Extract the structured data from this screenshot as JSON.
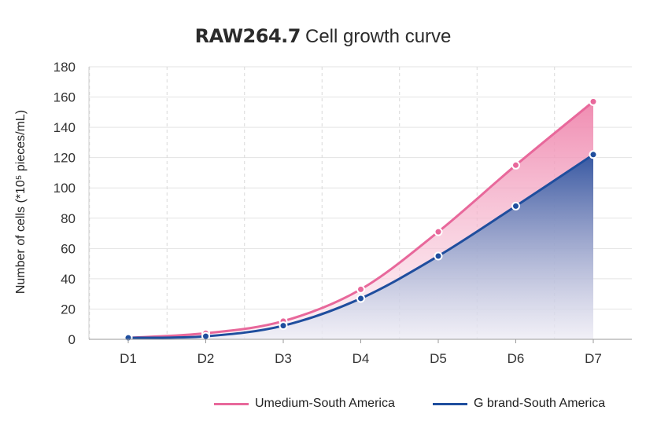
{
  "chart_data": {
    "type": "area",
    "title_bold": "RAW264.7",
    "title_rest": "Cell growth curve",
    "ylabel": "Number of cells  (*10⁵ pieces/mL)",
    "xlabel": "",
    "categories": [
      "D1",
      "D2",
      "D3",
      "D4",
      "D5",
      "D6",
      "D7"
    ],
    "ylim": [
      0,
      180
    ],
    "yticks": [
      0,
      20,
      40,
      60,
      80,
      100,
      120,
      140,
      160,
      180
    ],
    "grid": true,
    "legend_position": "bottom-right",
    "series": [
      {
        "name": "Umedium-South America",
        "color": "#e8689b",
        "values": [
          1,
          4,
          12,
          33,
          71,
          115,
          157
        ]
      },
      {
        "name": "G brand-South America",
        "color": "#1f4e9e",
        "values": [
          1,
          2,
          9,
          27,
          55,
          88,
          122
        ]
      }
    ]
  }
}
